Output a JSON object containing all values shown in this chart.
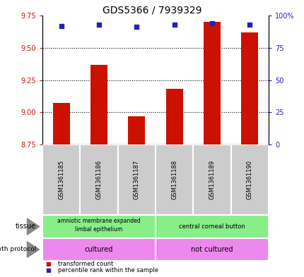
{
  "title": "GDS5366 / 7939329",
  "samples": [
    "GSM1361185",
    "GSM1361186",
    "GSM1361187",
    "GSM1361188",
    "GSM1361189",
    "GSM1361190"
  ],
  "bar_values": [
    9.07,
    9.37,
    8.97,
    9.18,
    9.7,
    9.62
  ],
  "percentile_values": [
    92,
    93,
    91,
    93,
    94,
    93
  ],
  "ylim_left": [
    8.75,
    9.75
  ],
  "ylim_right": [
    0,
    100
  ],
  "yticks_left": [
    8.75,
    9.0,
    9.25,
    9.5,
    9.75
  ],
  "yticks_right": [
    0,
    25,
    50,
    75,
    100
  ],
  "bar_color": "#cc1100",
  "percentile_color": "#2222bb",
  "bar_bottom": 8.75,
  "tissue_labels": [
    "amniotic membrane expanded\nlimbal epithelium",
    "central corneal button"
  ],
  "tissue_color": "#88ee88",
  "growth_labels": [
    "cultured",
    "not cultured"
  ],
  "growth_color": "#ee88ee",
  "sample_bg_color": "#cccccc",
  "title_fontsize": 10,
  "arrow_color": "#888888"
}
